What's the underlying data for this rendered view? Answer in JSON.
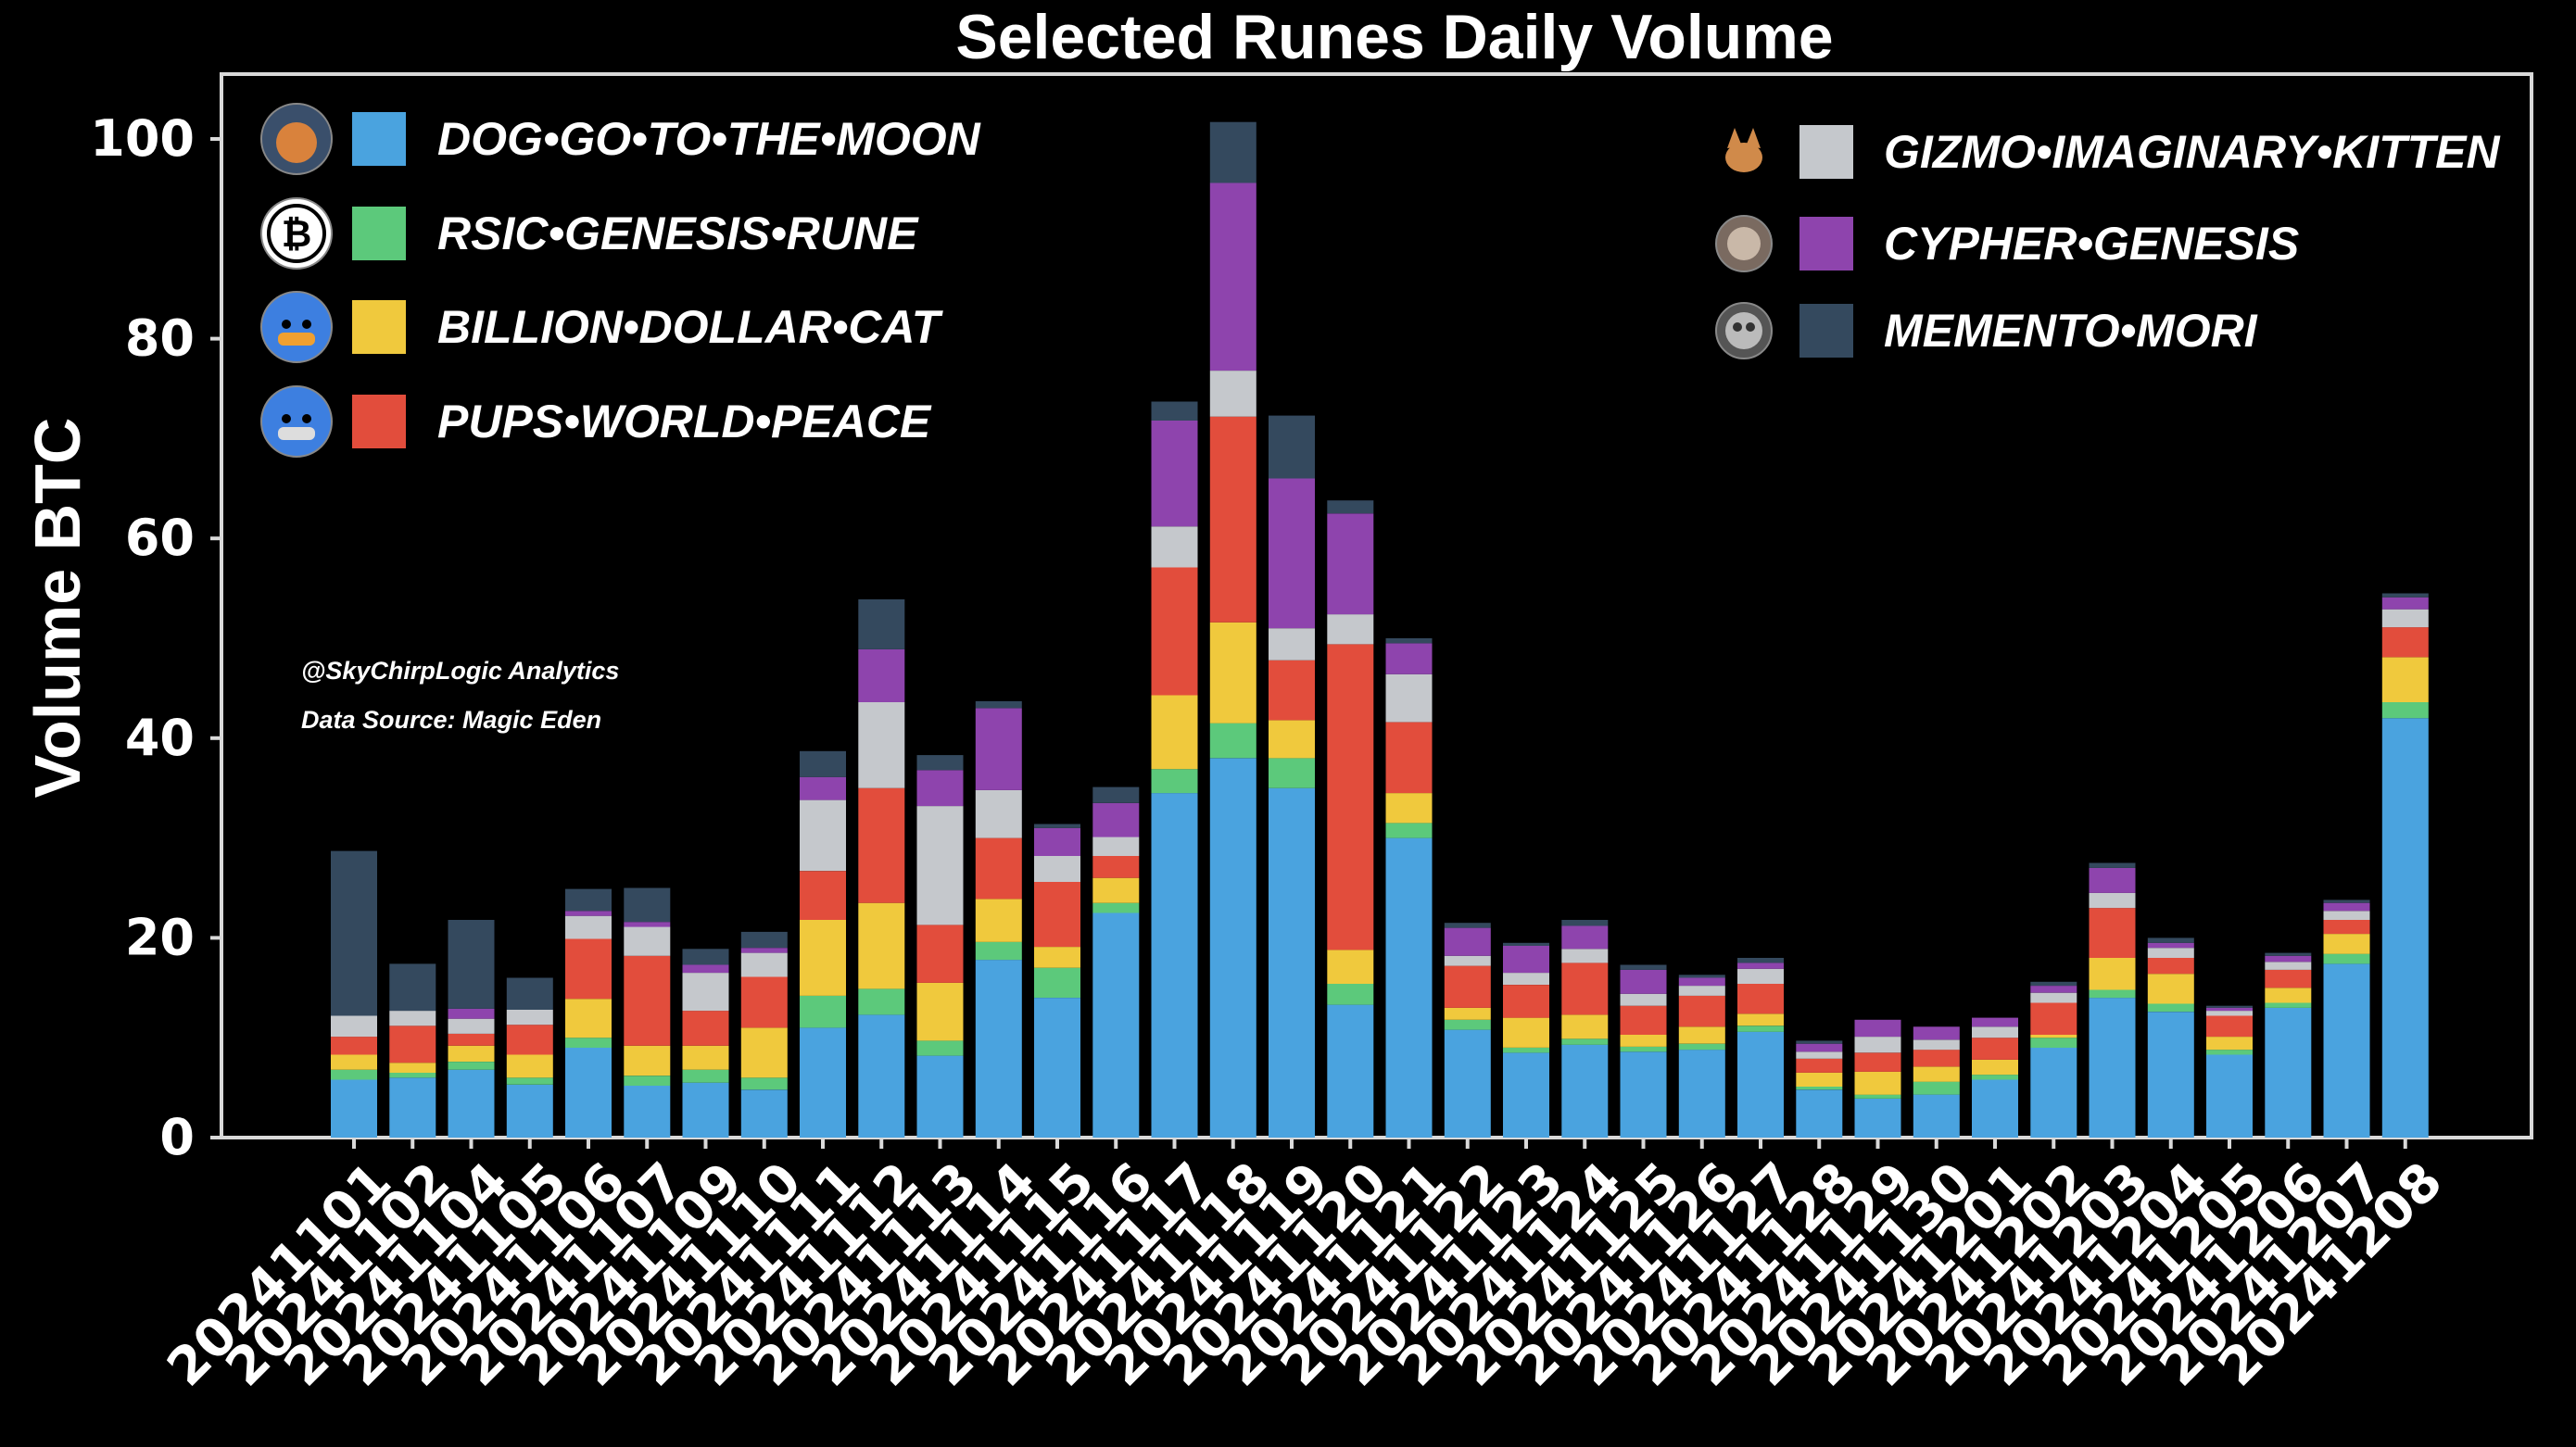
{
  "chart_data": {
    "type": "bar",
    "stacked": true,
    "title": "Selected Runes Daily Volume",
    "xlabel": "",
    "ylabel": "Volume BTC",
    "ylim": [
      0,
      107
    ],
    "yticks": [
      0,
      20,
      40,
      60,
      80,
      100
    ],
    "grid": false,
    "legend_placement": "top-left and top-right, two columns",
    "annotations": [
      "@SkyChirpLogic Analytics",
      "Data Source: Magic Eden"
    ],
    "categories": [
      "20241101",
      "20241102",
      "20241104",
      "20241105",
      "20241106",
      "20241107",
      "20241109",
      "20241110",
      "20241111",
      "20241112",
      "20241113",
      "20241114",
      "20241115",
      "20241116",
      "20241117",
      "20241118",
      "20241119",
      "20241120",
      "20241121",
      "20241122",
      "20241123",
      "20241124",
      "20241125",
      "20241126",
      "20241127",
      "20241128",
      "20241129",
      "20241130",
      "20241201",
      "20241202",
      "20241203",
      "20241204",
      "20241205",
      "20241206",
      "20241207",
      "20241208"
    ],
    "series": [
      {
        "name": "DOG•GO•TO•THE•MOON",
        "color": "#4aa3df",
        "values": [
          5.8,
          6.0,
          6.8,
          5.3,
          9.0,
          5.2,
          5.5,
          4.8,
          11.0,
          12.3,
          8.2,
          17.8,
          14.0,
          22.5,
          34.5,
          38.0,
          35.0,
          13.3,
          30.0,
          10.8,
          8.5,
          9.3,
          8.6,
          8.8,
          10.6,
          4.8,
          3.9,
          4.3,
          5.8,
          9.0,
          14.0,
          12.6,
          8.3,
          13.0,
          17.4,
          42.0
        ]
      },
      {
        "name": "RSIC•GENESIS•RUNE",
        "color": "#5cc97b",
        "values": [
          1.0,
          0.5,
          0.8,
          0.7,
          1.0,
          1.0,
          1.3,
          1.2,
          3.2,
          2.6,
          1.5,
          1.8,
          3.0,
          1.0,
          2.4,
          3.5,
          3.0,
          2.1,
          1.5,
          1.0,
          0.5,
          0.6,
          0.5,
          0.6,
          0.6,
          0.3,
          0.4,
          1.3,
          0.5,
          1.0,
          0.8,
          0.8,
          0.5,
          0.5,
          1.0,
          1.6
        ]
      },
      {
        "name": "BILLION•DOLLAR•CAT",
        "color": "#f0c93d",
        "values": [
          1.5,
          1.0,
          1.6,
          2.3,
          3.9,
          3.0,
          2.4,
          5.0,
          7.6,
          8.6,
          5.8,
          4.3,
          2.1,
          2.5,
          7.4,
          10.1,
          3.8,
          3.4,
          3.0,
          1.2,
          3.0,
          2.4,
          1.2,
          1.7,
          1.2,
          1.4,
          2.3,
          1.5,
          1.5,
          0.3,
          3.2,
          3.0,
          1.3,
          1.5,
          2.0,
          4.5
        ]
      },
      {
        "name": "PUPS•WORLD•PEACE",
        "color": "#e24d3c",
        "values": [
          1.8,
          3.7,
          1.2,
          3.0,
          6.0,
          9.0,
          3.5,
          5.1,
          4.9,
          11.5,
          5.8,
          6.1,
          6.5,
          2.2,
          12.8,
          20.6,
          6.0,
          30.6,
          7.1,
          4.2,
          3.3,
          5.2,
          2.9,
          3.1,
          3.0,
          1.4,
          1.9,
          1.7,
          2.2,
          3.2,
          5.0,
          1.6,
          2.1,
          1.8,
          1.4,
          3.0
        ]
      },
      {
        "name": "GIZMO•IMAGINARY•KITTEN",
        "color": "#c5c8cc",
        "values": [
          2.1,
          1.5,
          1.5,
          1.5,
          2.3,
          2.9,
          3.8,
          2.4,
          7.1,
          8.6,
          11.9,
          4.8,
          2.6,
          1.9,
          4.1,
          4.6,
          3.2,
          3.0,
          4.8,
          1.0,
          1.2,
          1.4,
          1.2,
          1.0,
          1.5,
          0.7,
          1.6,
          1.0,
          1.1,
          1.0,
          1.5,
          1.0,
          0.5,
          0.8,
          0.9,
          1.8
        ]
      },
      {
        "name": "CYPHER•GENESIS",
        "color": "#8e44ad",
        "values": [
          0.0,
          0.0,
          1.0,
          0.0,
          0.5,
          0.5,
          0.8,
          0.5,
          2.3,
          5.3,
          3.6,
          8.2,
          2.8,
          3.4,
          10.6,
          18.8,
          15.0,
          10.1,
          3.1,
          2.8,
          2.7,
          2.3,
          2.4,
          0.8,
          0.6,
          0.8,
          1.7,
          1.3,
          0.9,
          0.7,
          2.5,
          0.5,
          0.3,
          0.6,
          0.8,
          1.2
        ]
      },
      {
        "name": "MEMENTO•MORI",
        "color": "#34495e",
        "values": [
          16.5,
          4.7,
          8.9,
          3.2,
          2.2,
          3.4,
          1.6,
          1.6,
          2.6,
          5.0,
          1.5,
          0.7,
          0.4,
          1.6,
          1.9,
          6.1,
          6.3,
          1.3,
          0.5,
          0.5,
          0.3,
          0.6,
          0.5,
          0.3,
          0.5,
          0.3,
          0.0,
          0.0,
          0.0,
          0.4,
          0.5,
          0.5,
          0.2,
          0.3,
          0.3,
          0.4
        ]
      }
    ]
  }
}
